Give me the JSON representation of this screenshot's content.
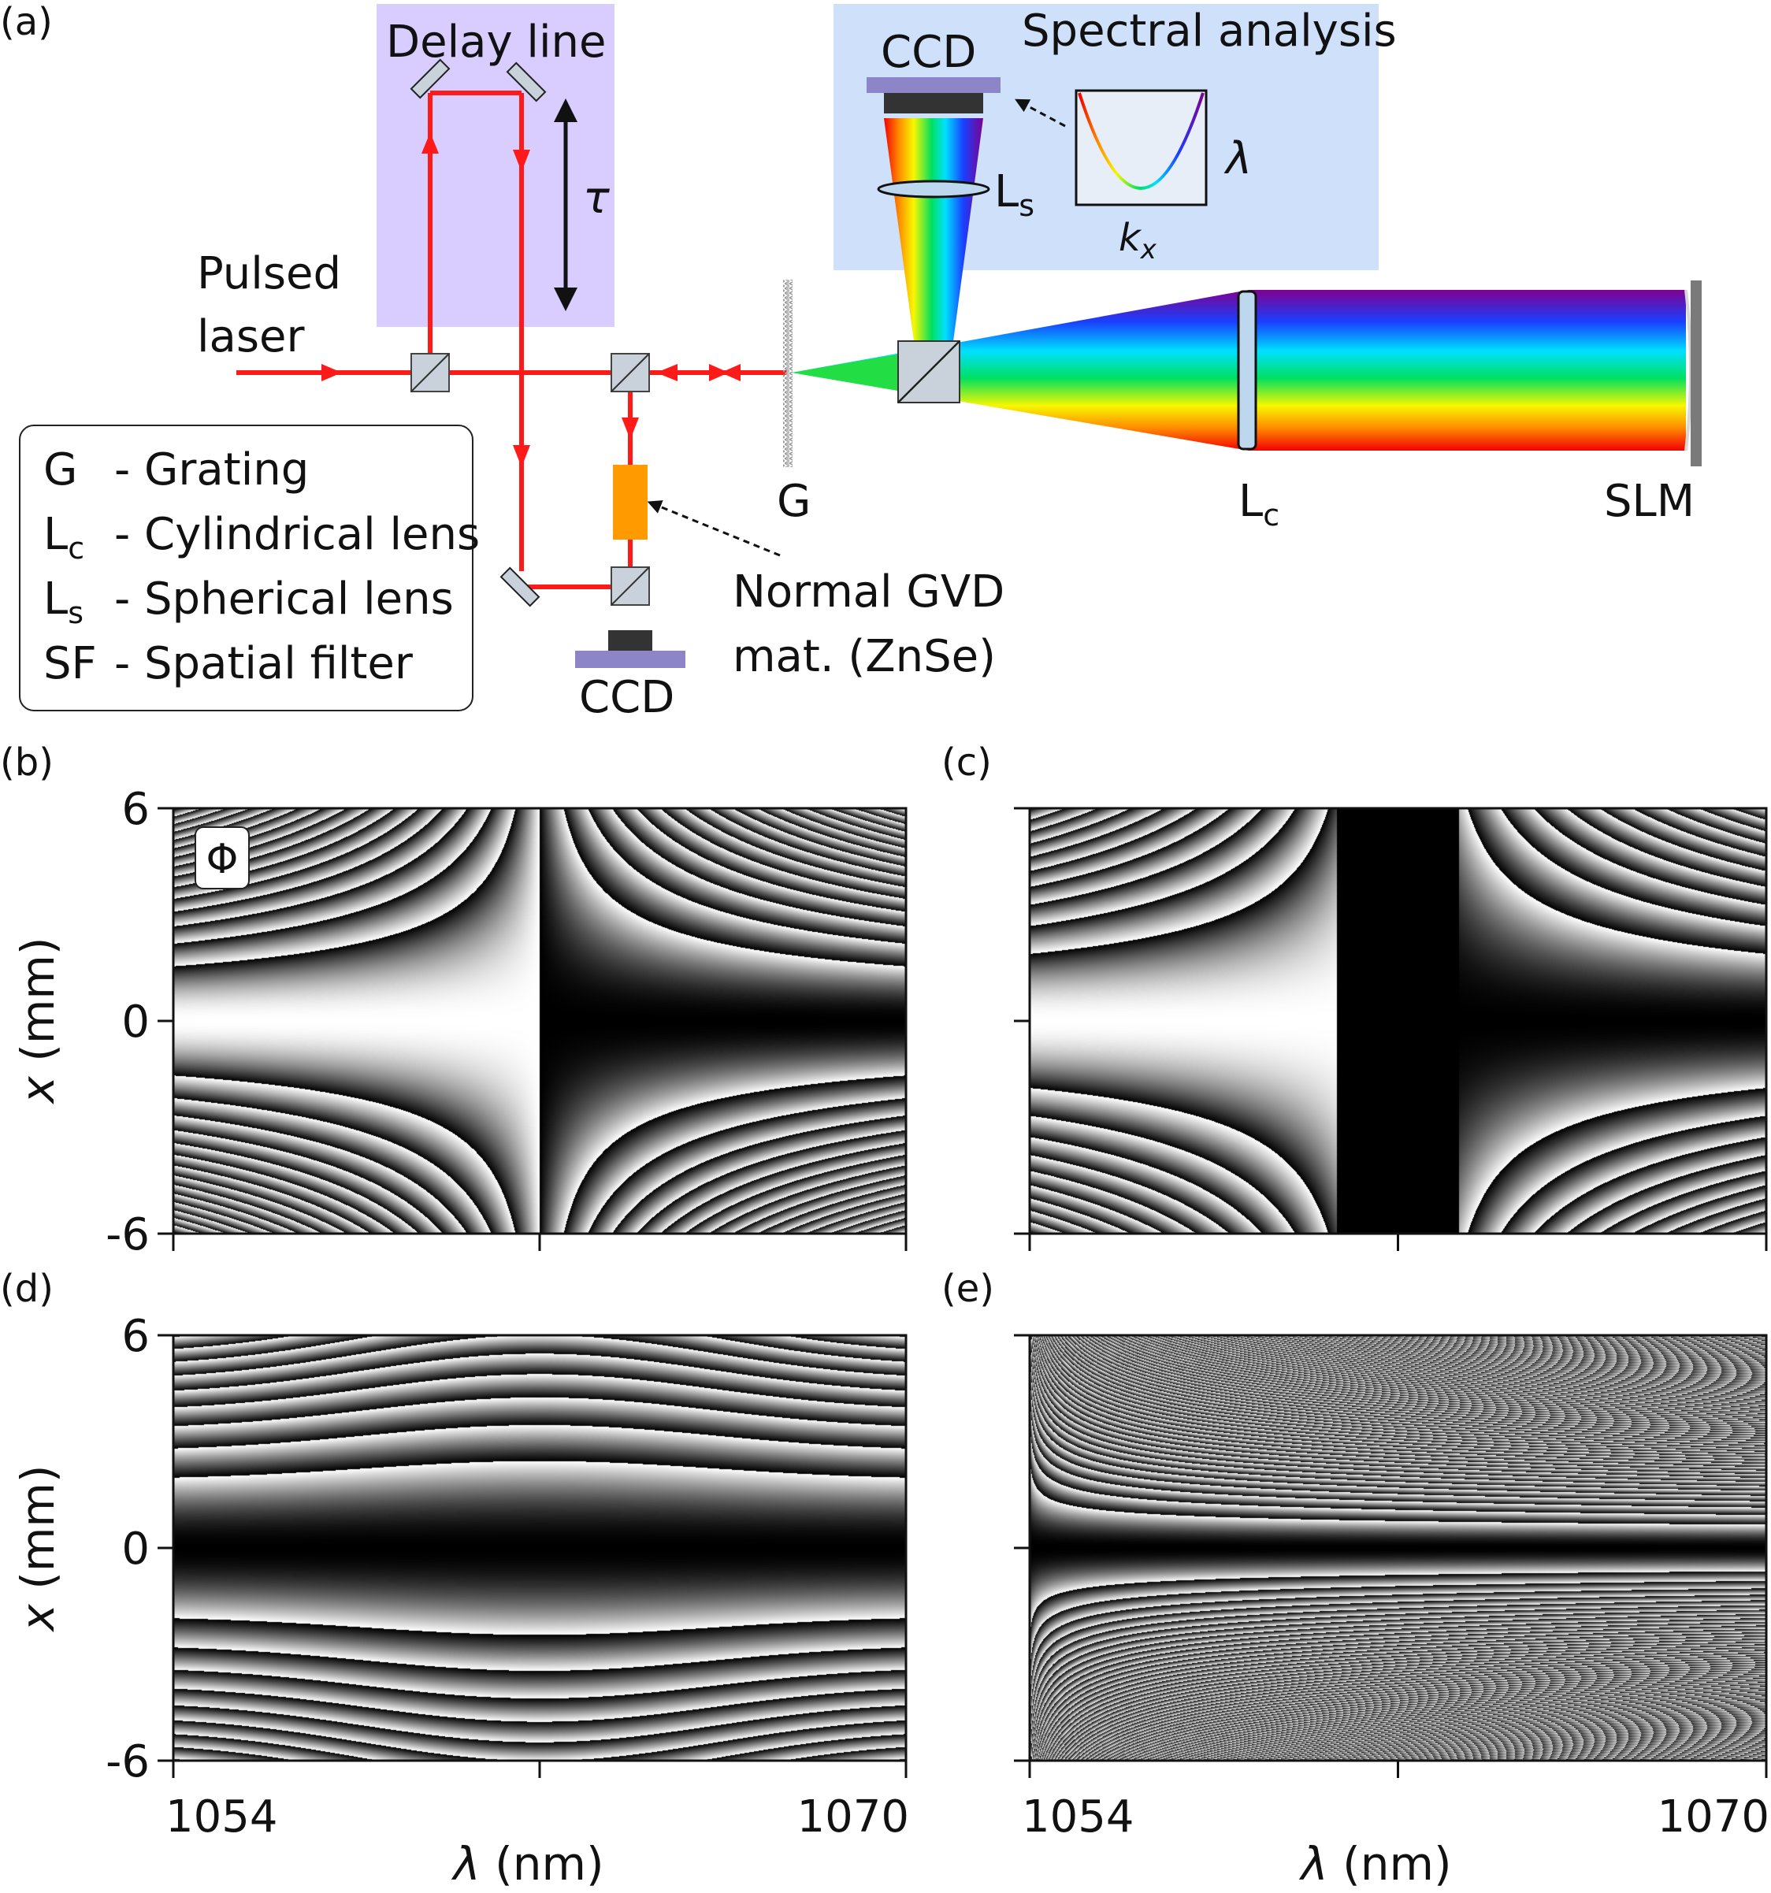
{
  "panel_labels": {
    "a": "(a)",
    "b": "(b)",
    "c": "(c)",
    "d": "(d)",
    "e": "(e)"
  },
  "setup": {
    "delay_line": "Delay line",
    "tau": "τ",
    "pulsed": "Pulsed",
    "laser": "laser",
    "spectral_analysis": "Spectral analysis",
    "ccd_top": "CCD",
    "ccd_bottom": "CCD",
    "ls_main": "L",
    "ls_sub": "s",
    "lambda": "λ",
    "kx_main": "k",
    "kx_sub": "x",
    "grating": "G",
    "lc_main": "L",
    "lc_sub": "c",
    "slm": "SLM",
    "gvd_line1": "Normal GVD",
    "gvd_line2": "mat. (ZnSe)"
  },
  "legend": {
    "rows": [
      {
        "key": "G",
        "sub": "",
        "desc": "- Grating"
      },
      {
        "key": "L",
        "sub": "c",
        "desc": "- Cylindrical lens"
      },
      {
        "key": "L",
        "sub": "s",
        "desc": "- Spherical lens"
      },
      {
        "key": "SF",
        "sub": "",
        "desc": "- Spatial filter"
      }
    ]
  },
  "plots": {
    "phi_label": "Φ",
    "y_label_italic": "x",
    "y_label_unit": " (mm)",
    "x_label_italic": "λ",
    "x_label_unit": " (nm)",
    "y_ticks": [
      "6",
      "0",
      "-6"
    ],
    "x_ticks": [
      "1054",
      "1070"
    ]
  },
  "chart_data": [
    {
      "type": "heatmap",
      "panel": "(b)",
      "xlim": [
        1054,
        1070
      ],
      "ylim": [
        -6,
        6
      ],
      "xlabel": "",
      "ylabel": "x (mm)",
      "quantity": "Φ",
      "colormap": "gray, wrapped phase"
    },
    {
      "type": "heatmap",
      "panel": "(c)",
      "xlim": [
        1054,
        1070
      ],
      "ylim": [
        -6,
        6
      ],
      "xlabel": "",
      "ylabel": "",
      "colormap": "gray, wrapped phase"
    },
    {
      "type": "heatmap",
      "panel": "(d)",
      "xlim": [
        1054,
        1070
      ],
      "ylim": [
        -6,
        6
      ],
      "xlabel": "λ (nm)",
      "ylabel": "x (mm)",
      "colormap": "gray, wrapped phase"
    },
    {
      "type": "heatmap",
      "panel": "(e)",
      "xlim": [
        1054,
        1070
      ],
      "ylim": [
        -6,
        6
      ],
      "xlabel": "λ (nm)",
      "ylabel": "",
      "colormap": "gray, wrapped phase"
    }
  ],
  "colors": {
    "beam": "#ff1a1a",
    "delay_box": "#d9ccff",
    "spectral_box": "#cfe0fb",
    "ccd": "#8c86c9",
    "gvd": "#ff9a00",
    "lens": "#bcd7ee"
  }
}
